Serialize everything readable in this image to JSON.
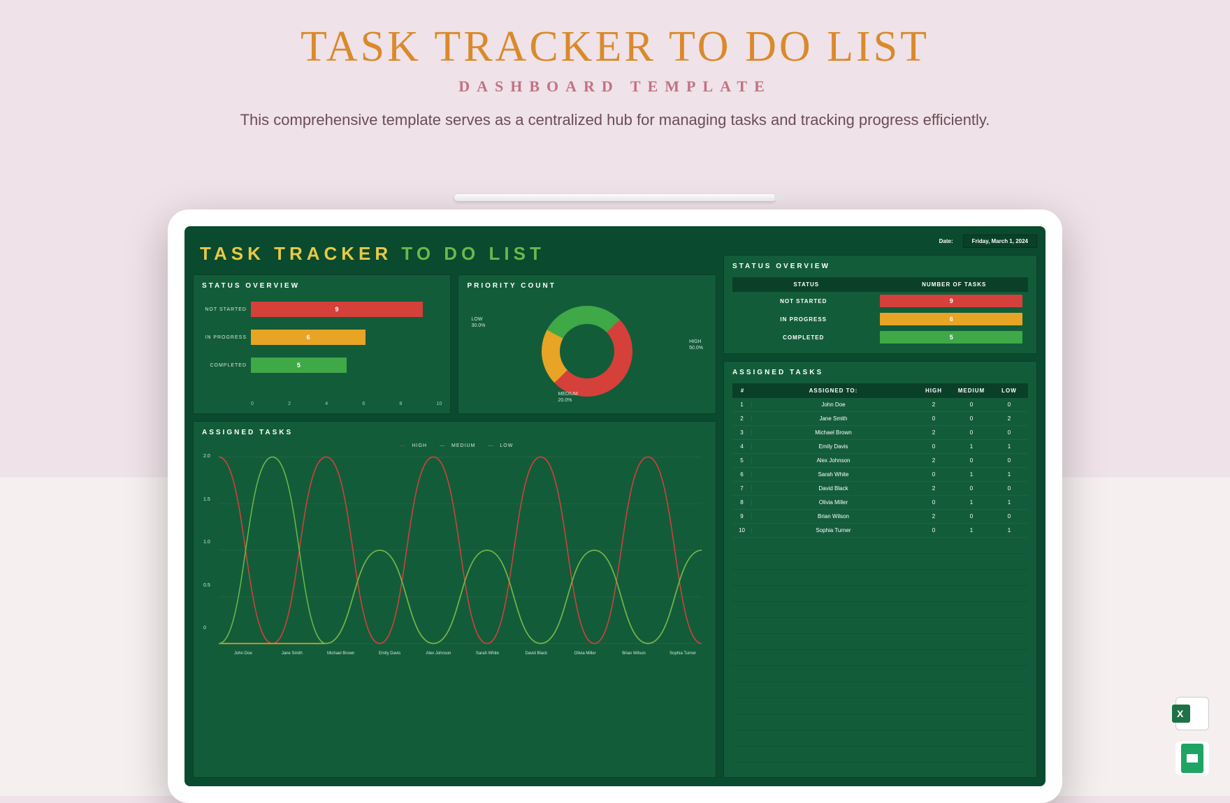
{
  "page": {
    "title": "TASK TRACKER TO DO LIST",
    "subtitle": "DASHBOARD TEMPLATE",
    "description": "This comprehensive template serves as a centralized hub for managing tasks and tracking progress efficiently."
  },
  "dashboard": {
    "title_part1": "TASK TRACKER",
    "title_part2": "TO DO LIST",
    "date_label": "Date:",
    "date_value": "Friday, March 1, 2024"
  },
  "status_overview": {
    "title": "STATUS OVERVIEW",
    "max": 10,
    "ticks": [
      "0",
      "2",
      "4",
      "6",
      "8",
      "10"
    ],
    "rows": [
      {
        "label": "NOT STARTED",
        "value": 9,
        "color": "#d6403a"
      },
      {
        "label": "IN PROGRESS",
        "value": 6,
        "color": "#e8a424"
      },
      {
        "label": "COMPLETED",
        "value": 5,
        "color": "#3fa847"
      }
    ]
  },
  "priority_count": {
    "title": "PRIORITY COUNT",
    "slices": [
      {
        "label": "HIGH",
        "pct": "50.0%",
        "value": 50,
        "color": "#d6403a"
      },
      {
        "label": "MEDIUM",
        "pct": "20.0%",
        "value": 20,
        "color": "#e8a424"
      },
      {
        "label": "LOW",
        "pct": "30.0%",
        "value": 30,
        "color": "#3fa847"
      }
    ]
  },
  "assigned_chart": {
    "title": "ASSIGNED TASKS",
    "legend": [
      "HIGH",
      "MEDIUM",
      "LOW"
    ],
    "legend_colors": [
      "#d6403a",
      "#e8a424",
      "#6bb84c"
    ],
    "yticks": [
      "0",
      "0.5",
      "1.0",
      "1.5",
      "2.0"
    ],
    "ymax": 2.0,
    "people": [
      "John Doe",
      "Jane Smith",
      "Michael Brown",
      "Emily Davis",
      "Alex Johnson",
      "Sarah White",
      "David Black",
      "Olivia Miller",
      "Brian Wilson",
      "Sophia Turner"
    ],
    "series": {
      "high": [
        2,
        0,
        2,
        0,
        2,
        0,
        2,
        0,
        2,
        0
      ],
      "medium": [
        0,
        0,
        0,
        1,
        0,
        1,
        0,
        1,
        0,
        1
      ],
      "low": [
        0,
        2,
        0,
        1,
        0,
        1,
        0,
        1,
        0,
        1
      ]
    }
  },
  "status_table": {
    "title": "STATUS OVERVIEW",
    "header": [
      "STATUS",
      "NUMBER OF TASKS"
    ],
    "rows": [
      {
        "label": "NOT STARTED",
        "value": "9",
        "color": "#d6403a"
      },
      {
        "label": "IN PROGRESS",
        "value": "6",
        "color": "#e8a424"
      },
      {
        "label": "COMPLETED",
        "value": "5",
        "color": "#3fa847"
      }
    ]
  },
  "assigned_table": {
    "title": "ASSIGNED TASKS",
    "header": {
      "num": "#",
      "assigned": "ASSIGNED TO:",
      "high": "HIGH",
      "medium": "MEDIUM",
      "low": "LOW"
    },
    "rows": [
      {
        "n": "1",
        "name": "John Doe",
        "high": "2",
        "medium": "0",
        "low": "0"
      },
      {
        "n": "2",
        "name": "Jane Smith",
        "high": "0",
        "medium": "0",
        "low": "2"
      },
      {
        "n": "3",
        "name": "Michael Brown",
        "high": "2",
        "medium": "0",
        "low": "0"
      },
      {
        "n": "4",
        "name": "Emily Davis",
        "high": "0",
        "medium": "1",
        "low": "1"
      },
      {
        "n": "5",
        "name": "Alex Johnson",
        "high": "2",
        "medium": "0",
        "low": "0"
      },
      {
        "n": "6",
        "name": "Sarah White",
        "high": "0",
        "medium": "1",
        "low": "1"
      },
      {
        "n": "7",
        "name": "David Black",
        "high": "2",
        "medium": "0",
        "low": "0"
      },
      {
        "n": "8",
        "name": "Olivia Miller",
        "high": "0",
        "medium": "1",
        "low": "1"
      },
      {
        "n": "9",
        "name": "Brian Wilson",
        "high": "2",
        "medium": "0",
        "low": "0"
      },
      {
        "n": "10",
        "name": "Sophia Turner",
        "high": "0",
        "medium": "1",
        "low": "1"
      }
    ]
  },
  "colors": {
    "screen_bg": "#0a4a2e",
    "panel_bg": "#135c3a",
    "header_bg": "#0a4028"
  }
}
